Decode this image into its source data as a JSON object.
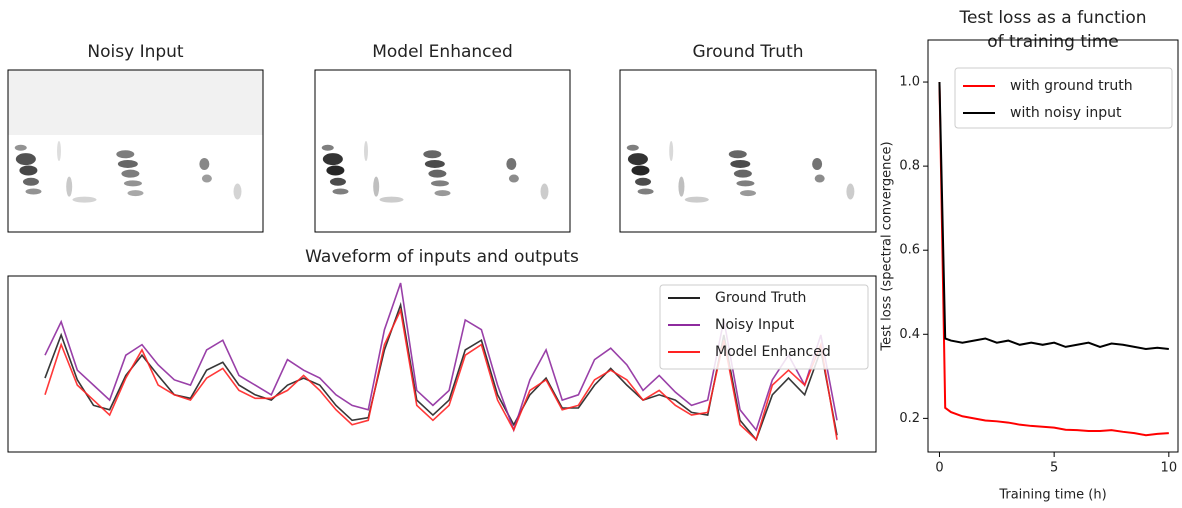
{
  "chart_data": [
    {
      "type": "image",
      "title": "Noisy Input"
    },
    {
      "type": "image",
      "title": "Model Enhanced"
    },
    {
      "type": "image",
      "title": "Ground Truth"
    },
    {
      "type": "line",
      "title": "Waveform of inputs and outputs",
      "legend": "upper right",
      "series": [
        {
          "name": "Ground Truth",
          "color": "#222222",
          "values": [
            -0.16,
            0.33,
            -0.18,
            -0.47,
            -0.52,
            -0.13,
            0.1,
            -0.13,
            -0.35,
            -0.39,
            -0.07,
            0.02,
            -0.24,
            -0.35,
            -0.41,
            -0.24,
            -0.16,
            -0.24,
            -0.47,
            -0.64,
            -0.61,
            0.16,
            0.67,
            -0.41,
            -0.58,
            -0.41,
            0.16,
            0.27,
            -0.35,
            -0.69,
            -0.35,
            -0.16,
            -0.5,
            -0.5,
            -0.24,
            -0.05,
            -0.24,
            -0.41,
            -0.35,
            -0.41,
            -0.55,
            -0.58,
            0.33,
            -0.64,
            -0.86,
            -0.35,
            -0.16,
            -0.35,
            0.16,
            -0.81
          ]
        },
        {
          "name": "Noisy Input",
          "color": "#8e2b9e",
          "values": [
            0.1,
            0.48,
            -0.07,
            -0.24,
            -0.41,
            0.1,
            0.22,
            -0.01,
            -0.18,
            -0.24,
            0.16,
            0.27,
            -0.13,
            -0.24,
            -0.35,
            0.05,
            -0.07,
            -0.16,
            -0.35,
            -0.47,
            -0.52,
            0.39,
            0.92,
            -0.3,
            -0.47,
            -0.3,
            0.5,
            0.39,
            -0.24,
            -0.75,
            -0.18,
            0.16,
            -0.41,
            -0.35,
            0.05,
            0.18,
            -0.01,
            -0.3,
            -0.13,
            -0.32,
            -0.47,
            -0.41,
            0.5,
            -0.52,
            -0.75,
            -0.18,
            0.1,
            -0.24,
            0.33,
            -0.64
          ]
        },
        {
          "name": "Model Enhanced",
          "color": "#ff2222",
          "values": [
            -0.35,
            0.22,
            -0.24,
            -0.41,
            -0.58,
            -0.16,
            0.16,
            -0.24,
            -0.35,
            -0.41,
            -0.16,
            -0.05,
            -0.3,
            -0.39,
            -0.39,
            -0.3,
            -0.13,
            -0.3,
            -0.52,
            -0.69,
            -0.64,
            0.22,
            0.61,
            -0.47,
            -0.64,
            -0.47,
            0.1,
            0.22,
            -0.41,
            -0.75,
            -0.3,
            -0.18,
            -0.52,
            -0.47,
            -0.18,
            -0.07,
            -0.18,
            -0.41,
            -0.3,
            -0.47,
            -0.58,
            -0.55,
            0.27,
            -0.69,
            -0.86,
            -0.24,
            -0.07,
            -0.24,
            0.22,
            -0.86
          ]
        }
      ]
    },
    {
      "type": "line",
      "title": "Test loss as a function\nof training time",
      "xlabel": "Training time (h)",
      "ylabel": "Test loss (spectral convergence)",
      "legend": "upper right",
      "xlim": [
        -0.5,
        10.4
      ],
      "ylim": [
        0.12,
        1.1
      ],
      "xticks": [
        0,
        5,
        10
      ],
      "yticks": [
        0.2,
        0.4,
        0.6,
        0.8,
        {
          "value": 1.0,
          "label": "1.0"
        }
      ],
      "x": [
        0,
        0.25,
        0.5,
        1,
        1.5,
        2,
        2.5,
        3,
        3.5,
        4,
        4.5,
        5,
        5.5,
        6,
        6.5,
        7,
        7.5,
        8,
        8.5,
        9,
        9.5,
        10
      ],
      "series": [
        {
          "name": "with ground truth",
          "color": "#ff0000",
          "values": [
            1.0,
            0.225,
            0.215,
            0.205,
            0.2,
            0.195,
            0.193,
            0.19,
            0.185,
            0.182,
            0.18,
            0.178,
            0.173,
            0.172,
            0.17,
            0.17,
            0.172,
            0.168,
            0.165,
            0.16,
            0.163,
            0.165
          ]
        },
        {
          "name": "with noisy input",
          "color": "#000000",
          "values": [
            1.0,
            0.39,
            0.385,
            0.38,
            0.385,
            0.39,
            0.38,
            0.385,
            0.375,
            0.38,
            0.375,
            0.38,
            0.37,
            0.375,
            0.38,
            0.37,
            0.378,
            0.375,
            0.37,
            0.365,
            0.368,
            0.365
          ]
        }
      ]
    }
  ]
}
